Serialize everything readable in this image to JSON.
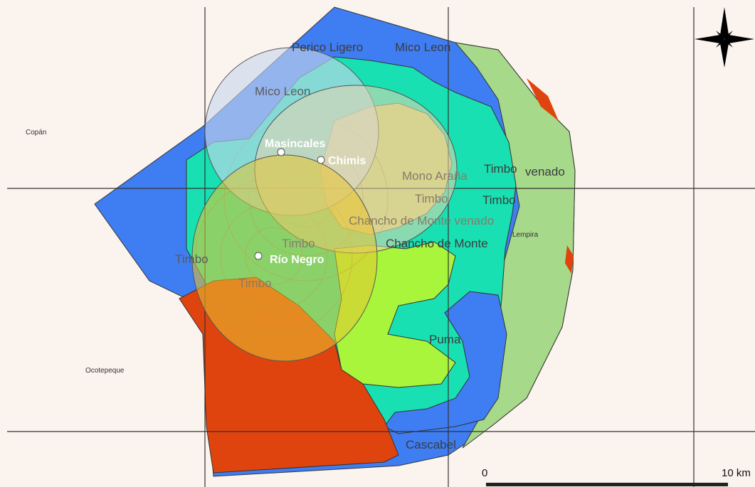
{
  "map": {
    "departments": [
      "Copán",
      "Ocotepeque",
      "Lempira"
    ],
    "sites": [
      "Masincales",
      "Chimis",
      "Río Negro"
    ],
    "zone_labels": {
      "perico_ligero": "Perico Ligero",
      "mico_leon_top": "Mico Leon",
      "mico_leon_left": "Mico Leon",
      "mono_arana": "Mono Araña",
      "timbo_1": "Timbo",
      "timbo_2": "Timbo",
      "timbo_3": "Timbo",
      "timbo_4": "Timbo",
      "timbo_5": "Timbo",
      "timbo_6": "Timbo",
      "venado_1": "venado",
      "chancho_venado": "Chancho de Monte venado",
      "chancho_monte": "Chancho de Monte",
      "puma": "Puma",
      "cascabel": "Cascabel"
    },
    "scale_bar": {
      "start_label": "0",
      "end_label": "10 km"
    },
    "icons": {
      "north_arrow": "north-arrow-icon",
      "site_marker": "site-point-icon"
    },
    "colors": {
      "background": "#fbf3ee",
      "blue_zone": "#3f7df2",
      "teal_zone": "#19e0b2",
      "light_green_zone": "#a7d98a",
      "lime_zone": "#a8f53c",
      "orange_red_zone": "#e0440e",
      "yellow_overlay": "#e8d040",
      "pale_blue_overlay": "#c8d6ec",
      "grid_line": "#333333"
    }
  }
}
